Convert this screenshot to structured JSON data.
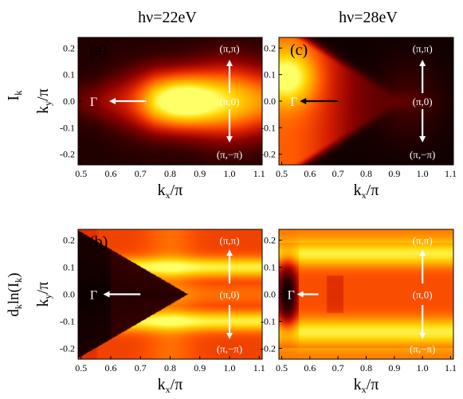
{
  "figure": {
    "column_titles": [
      "hν=22eV",
      "hν=28eV"
    ],
    "row_labels": [
      "I_k",
      "d_k ln(I_k)"
    ],
    "colormap": {
      "name": "hot",
      "stops": [
        "#000000",
        "#3a0000",
        "#8b0000",
        "#d41e00",
        "#ff5500",
        "#ff9a00",
        "#ffd200",
        "#ffff66"
      ]
    },
    "arrow_colors": {
      "white": "#ffffff",
      "black": "#000000"
    }
  },
  "chart_data": [
    {
      "type": "heatmap",
      "panel_label": "(a)",
      "quantity": "I_k",
      "photon_energy": "hν=22eV",
      "xlabel": "k_x/π",
      "ylabel": "k_y/π",
      "xlim": [
        0.49,
        1.11
      ],
      "ylim": [
        -0.24,
        0.24
      ],
      "xticks": [
        0.5,
        0.6,
        0.7,
        0.8,
        0.9,
        1.0,
        1.1
      ],
      "yticks": [
        -0.2,
        -0.1,
        0.0,
        0.1,
        0.2
      ],
      "annotations": [
        {
          "text": "(π,π)",
          "x": 1.0,
          "y": 0.2
        },
        {
          "text": "(π,0)",
          "x": 1.0,
          "y": 0.0
        },
        {
          "text": "(π,−π)",
          "x": 1.0,
          "y": -0.2
        },
        {
          "text": "Γ",
          "x": 0.53,
          "y": 0.0
        }
      ],
      "arrows": [
        {
          "from": [
            0.72,
            0.0
          ],
          "to": [
            0.6,
            0.0
          ],
          "color": "white"
        },
        {
          "from": [
            1.0,
            0.03
          ],
          "to": [
            1.0,
            0.15
          ],
          "color": "white"
        },
        {
          "from": [
            1.0,
            -0.03
          ],
          "to": [
            1.0,
            -0.15
          ],
          "color": "white"
        }
      ],
      "features": [
        {
          "kind": "intensity_max",
          "x": 0.83,
          "y": 0.0,
          "level": 1.0
        },
        {
          "kind": "high_intensity_band",
          "x_range": [
            0.55,
            1.1
          ],
          "y_center": 0.0,
          "half_width": 0.11
        }
      ]
    },
    {
      "type": "heatmap",
      "panel_label": "(c)",
      "quantity": "I_k",
      "photon_energy": "hν=28eV",
      "xlabel": "k_x/π",
      "ylabel": "",
      "xlim": [
        0.49,
        1.11
      ],
      "ylim": [
        -0.24,
        0.24
      ],
      "xticks": [
        0.5,
        0.6,
        0.7,
        0.8,
        0.9,
        1.0,
        1.1
      ],
      "yticks": [
        -0.2,
        -0.1,
        0.0,
        0.1,
        0.2
      ],
      "annotations": [
        {
          "text": "(π,π)",
          "x": 1.0,
          "y": 0.2
        },
        {
          "text": "(π,0)",
          "x": 1.0,
          "y": 0.0
        },
        {
          "text": "(π,−π)",
          "x": 1.0,
          "y": -0.2
        },
        {
          "text": "Γ",
          "x": 0.53,
          "y": 0.0
        }
      ],
      "arrows": [
        {
          "from": [
            0.7,
            0.0
          ],
          "to": [
            0.57,
            0.0
          ],
          "color": "black"
        },
        {
          "from": [
            1.0,
            0.03
          ],
          "to": [
            1.0,
            0.15
          ],
          "color": "white"
        },
        {
          "from": [
            1.0,
            -0.03
          ],
          "to": [
            1.0,
            -0.15
          ],
          "color": "white"
        }
      ],
      "features": [
        {
          "kind": "intensity_max",
          "x": 0.52,
          "y": 0.08,
          "level": 1.0
        },
        {
          "kind": "bright_wedge",
          "apex": [
            0.88,
            0.0
          ],
          "x_range": [
            0.49,
            0.88
          ]
        }
      ]
    },
    {
      "type": "heatmap",
      "panel_label": "(b)",
      "quantity": "d_k ln(I_k)",
      "photon_energy": "hν=22eV",
      "xlabel": "k_x/π",
      "ylabel": "k_y/π",
      "xlim": [
        0.49,
        1.11
      ],
      "ylim": [
        -0.24,
        0.24
      ],
      "xticks": [
        0.5,
        0.6,
        0.7,
        0.8,
        0.9,
        1.0,
        1.1
      ],
      "yticks": [
        -0.2,
        -0.1,
        0.0,
        0.1,
        0.2
      ],
      "annotations": [
        {
          "text": "(π,π)",
          "x": 1.0,
          "y": 0.2
        },
        {
          "text": "(π,0)",
          "x": 1.0,
          "y": 0.0
        },
        {
          "text": "(π,−π)",
          "x": 1.0,
          "y": -0.2
        },
        {
          "text": "Γ",
          "x": 0.53,
          "y": 0.0
        }
      ],
      "arrows": [
        {
          "from": [
            0.7,
            0.0
          ],
          "to": [
            0.58,
            0.0
          ],
          "color": "white"
        },
        {
          "from": [
            1.0,
            0.04
          ],
          "to": [
            1.0,
            0.16
          ],
          "color": "white"
        },
        {
          "from": [
            1.0,
            -0.04
          ],
          "to": [
            1.0,
            -0.16
          ],
          "color": "white"
        }
      ],
      "features": [
        {
          "kind": "dark_region",
          "x_range": [
            0.49,
            0.86
          ],
          "shape": "wedge",
          "apex": [
            0.86,
            0.0
          ]
        },
        {
          "kind": "bright_band",
          "y_center": 0.1,
          "half_width": 0.03
        },
        {
          "kind": "bright_band",
          "y_center": -0.1,
          "half_width": 0.03
        }
      ]
    },
    {
      "type": "heatmap",
      "panel_label": "",
      "quantity": "d_k ln(I_k)",
      "photon_energy": "hν=28eV",
      "xlabel": "k_x/π",
      "ylabel": "",
      "xlim": [
        0.49,
        1.11
      ],
      "ylim": [
        -0.24,
        0.24
      ],
      "xticks": [
        0.5,
        0.6,
        0.7,
        0.8,
        0.9,
        1.0,
        1.1
      ],
      "yticks": [
        -0.2,
        -0.1,
        0.0,
        0.1,
        0.2
      ],
      "annotations": [
        {
          "text": "(π,π)",
          "x": 1.0,
          "y": 0.2
        },
        {
          "text": "(π,0)",
          "x": 1.0,
          "y": 0.0
        },
        {
          "text": "(π,−π)",
          "x": 1.0,
          "y": -0.2
        },
        {
          "text": "Γ",
          "x": 0.52,
          "y": 0.0
        }
      ],
      "arrows": [
        {
          "from": [
            0.63,
            0.0
          ],
          "to": [
            0.56,
            0.0
          ],
          "color": "white"
        },
        {
          "from": [
            1.0,
            0.04
          ],
          "to": [
            1.0,
            0.16
          ],
          "color": "white"
        },
        {
          "from": [
            1.0,
            -0.04
          ],
          "to": [
            1.0,
            -0.16
          ],
          "color": "white"
        }
      ],
      "features": [
        {
          "kind": "dark_region",
          "x_range": [
            0.49,
            0.56
          ],
          "shape": "strip"
        },
        {
          "kind": "bright_band",
          "y_center": 0.15,
          "half_width": 0.04
        },
        {
          "kind": "bright_band",
          "y_center": -0.14,
          "half_width": 0.04
        }
      ]
    }
  ]
}
